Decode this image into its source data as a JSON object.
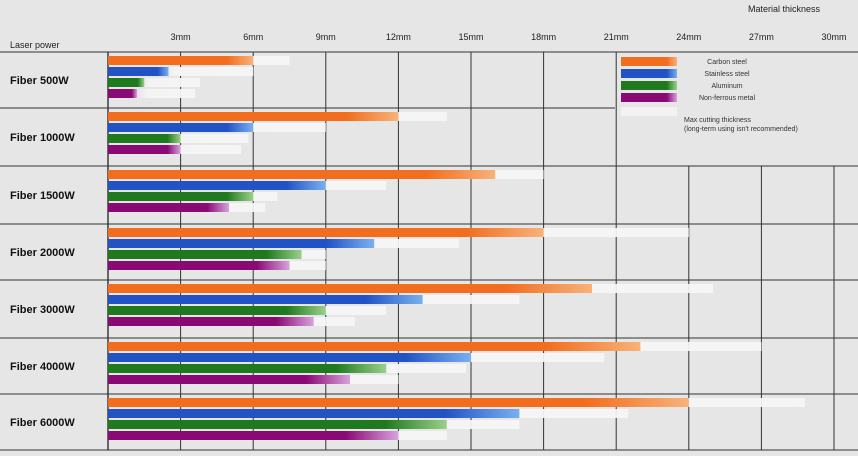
{
  "chart_data": {
    "type": "bar",
    "title": "",
    "xlabel": "Material thickness",
    "ylabel": "Laser power",
    "unit": "mm",
    "xlim": [
      0,
      30
    ],
    "ticks": [
      {
        "value": 3,
        "label": "3mm"
      },
      {
        "value": 6,
        "label": "6mm"
      },
      {
        "value": 9,
        "label": "9mm"
      },
      {
        "value": 12,
        "label": "12mm"
      },
      {
        "value": 15,
        "label": "15mm"
      },
      {
        "value": 18,
        "label": "18mm"
      },
      {
        "value": 21,
        "label": "21mm"
      },
      {
        "value": 24,
        "label": "24mm"
      },
      {
        "value": 27,
        "label": "27mm"
      },
      {
        "value": 30,
        "label": "30mm"
      }
    ],
    "categories": [
      "Fiber 500W",
      "Fiber 1000W",
      "Fiber 1500W",
      "Fiber 2000W",
      "Fiber 3000W",
      "Fiber 4000W",
      "Fiber 6000W"
    ],
    "series": [
      {
        "name": "Carbon steel",
        "color": "#f26d1e",
        "light": "#f8b27a",
        "recommended": [
          6,
          12,
          16,
          18,
          20,
          22,
          24
        ],
        "max": [
          7.5,
          14,
          18,
          24,
          25,
          27,
          28.8
        ]
      },
      {
        "name": "Stainless steel",
        "color": "#2153c4",
        "light": "#7ab0ef",
        "recommended": [
          2.5,
          6,
          9,
          11,
          13,
          15,
          17
        ],
        "max": [
          6,
          9,
          11.5,
          14.5,
          17,
          20.5,
          21.5
        ]
      },
      {
        "name": "Aluminum",
        "color": "#1f7a1f",
        "light": "#9bd08a",
        "recommended": [
          1.5,
          3,
          6,
          8,
          9,
          11.5,
          14
        ],
        "max": [
          3.8,
          5.8,
          7,
          9,
          11.5,
          14.8,
          17
        ]
      },
      {
        "name": "Non-ferrous metal",
        "color": "#8a0a75",
        "light": "#d7a2dc",
        "recommended": [
          1.2,
          3,
          5,
          7.5,
          8.5,
          10,
          12
        ],
        "max": [
          3.6,
          5.5,
          6.5,
          9,
          10.2,
          12,
          14
        ]
      }
    ],
    "legend": {
      "position": "top-right",
      "max_label_lines": [
        "Max cutting thickness",
        "(long-term using isn't recommended)"
      ]
    },
    "grid": true
  }
}
